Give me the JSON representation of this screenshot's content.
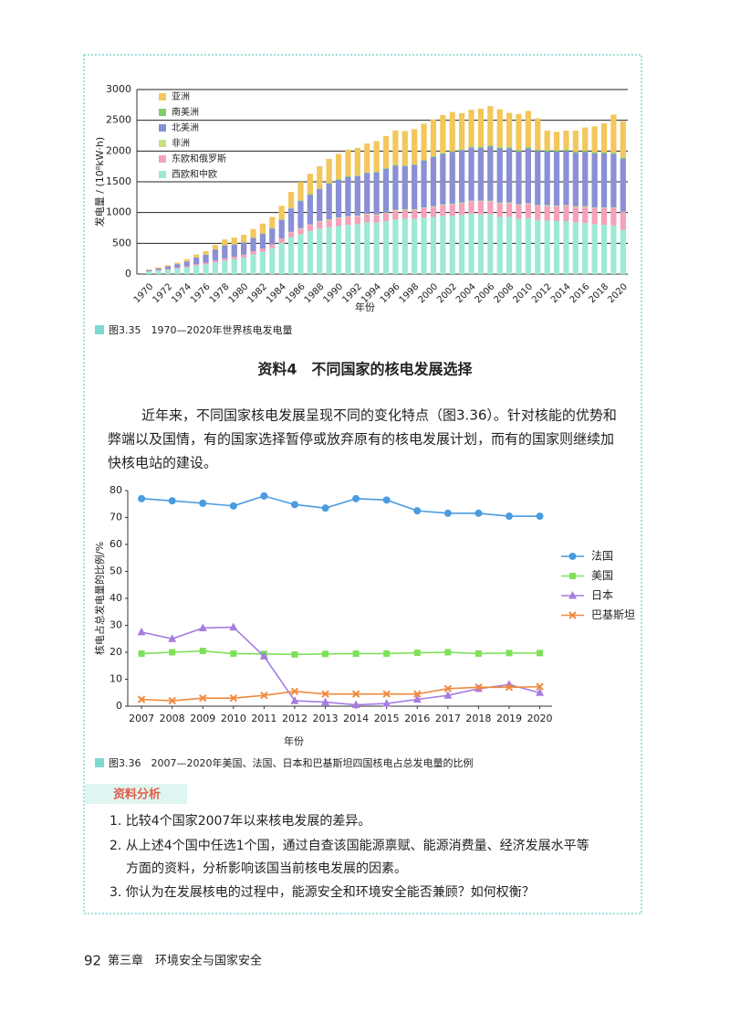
{
  "chart_data": [
    {
      "type": "bar",
      "stacked": true,
      "caption": "图3.35　1970—2020年世界核电发电量",
      "ylabel": "发电量 / (10⁸kW·h)",
      "xlabel": "年份",
      "categories": [
        "1970",
        null,
        "1972",
        null,
        "1974",
        null,
        "1976",
        null,
        "1978",
        null,
        "1980",
        null,
        "1982",
        null,
        "1984",
        null,
        "1986",
        null,
        "1988",
        null,
        "1990",
        null,
        "1992",
        null,
        "1994",
        null,
        "1996",
        null,
        "1998",
        null,
        "2000",
        null,
        "2002",
        null,
        "2004",
        null,
        "2006",
        null,
        "2008",
        null,
        "2010",
        null,
        "2012",
        null,
        "2014",
        null,
        "2016",
        null,
        "2018",
        null,
        "2020"
      ],
      "ylim": [
        0,
        3000
      ],
      "yticks": [
        0,
        500,
        1000,
        1500,
        2000,
        2500,
        3000
      ],
      "grid": true,
      "legend": "upper left",
      "series": [
        {
          "name": "西欧和中欧",
          "color": "#9de9d5",
          "values": [
            40,
            55,
            70,
            90,
            110,
            140,
            160,
            190,
            220,
            240,
            270,
            320,
            360,
            420,
            510,
            600,
            650,
            700,
            740,
            760,
            780,
            800,
            810,
            840,
            840,
            860,
            890,
            900,
            900,
            920,
            930,
            950,
            950,
            960,
            980,
            970,
            970,
            930,
            930,
            900,
            910,
            880,
            870,
            860,
            860,
            840,
            830,
            810,
            800,
            790,
            720
          ]
        },
        {
          "name": "东欧和俄罗斯",
          "color": "#f4a1b9",
          "values": [
            5,
            8,
            10,
            12,
            15,
            20,
            25,
            30,
            35,
            40,
            45,
            50,
            55,
            60,
            70,
            80,
            90,
            100,
            110,
            120,
            130,
            130,
            130,
            130,
            120,
            130,
            140,
            140,
            140,
            150,
            160,
            170,
            180,
            190,
            200,
            210,
            210,
            220,
            220,
            220,
            230,
            230,
            240,
            240,
            250,
            250,
            260,
            260,
            270,
            280,
            280
          ]
        },
        {
          "name": "非洲",
          "color": "#c6e08a",
          "values": [
            0,
            0,
            0,
            0,
            0,
            0,
            0,
            0,
            0,
            0,
            0,
            0,
            0,
            0,
            0,
            5,
            7,
            8,
            10,
            10,
            10,
            10,
            10,
            10,
            10,
            10,
            12,
            12,
            13,
            13,
            13,
            13,
            13,
            13,
            13,
            12,
            12,
            12,
            13,
            12,
            12,
            11,
            12,
            12,
            12,
            12,
            12,
            11,
            12,
            12,
            12
          ]
        },
        {
          "name": "北美洲",
          "color": "#8a8fd6",
          "values": [
            20,
            30,
            45,
            60,
            80,
            110,
            130,
            180,
            210,
            200,
            200,
            220,
            240,
            260,
            300,
            380,
            440,
            480,
            520,
            580,
            610,
            640,
            640,
            660,
            680,
            710,
            720,
            700,
            720,
            760,
            800,
            820,
            840,
            850,
            860,
            860,
            880,
            880,
            880,
            860,
            890,
            880,
            870,
            880,
            880,
            870,
            880,
            880,
            880,
            870,
            860
          ]
        },
        {
          "name": "南美洲",
          "color": "#7ccf6b",
          "values": [
            0,
            0,
            0,
            0,
            2,
            2,
            3,
            3,
            3,
            3,
            3,
            3,
            5,
            8,
            10,
            10,
            12,
            12,
            12,
            12,
            12,
            12,
            12,
            12,
            12,
            12,
            12,
            12,
            12,
            12,
            12,
            12,
            12,
            12,
            18,
            18,
            18,
            18,
            18,
            20,
            20,
            20,
            20,
            20,
            20,
            20,
            20,
            20,
            20,
            20,
            20
          ]
        },
        {
          "name": "亚洲",
          "color": "#f2c75c",
          "values": [
            10,
            15,
            20,
            25,
            35,
            45,
            55,
            70,
            95,
            110,
            120,
            140,
            160,
            180,
            220,
            260,
            300,
            330,
            360,
            390,
            410,
            430,
            450,
            470,
            500,
            520,
            560,
            560,
            570,
            590,
            600,
            620,
            640,
            590,
            600,
            620,
            640,
            620,
            560,
            590,
            590,
            510,
            320,
            300,
            310,
            340,
            380,
            420,
            470,
            620,
            590
          ]
        }
      ]
    },
    {
      "type": "line",
      "caption": "图3.36　2007—2020年美国、法国、日本和巴基斯坦四国核电占总发电量的比例",
      "ylabel": "核电占总发电量的比例/%",
      "xlabel": "年份",
      "x": [
        2007,
        2008,
        2009,
        2010,
        2011,
        2012,
        2013,
        2014,
        2015,
        2016,
        2017,
        2018,
        2019,
        2020
      ],
      "xlim": [
        2006.55,
        2020.4
      ],
      "xticks": [
        2007,
        2008,
        2009,
        2010,
        2011,
        2012,
        2013,
        2014,
        2015,
        2016,
        2017,
        2018,
        2019,
        2020
      ],
      "ylim": [
        0,
        80
      ],
      "yticks": [
        0,
        10,
        20,
        30,
        40,
        50,
        60,
        70,
        80
      ],
      "grid": false,
      "legend": "right",
      "series": [
        {
          "name": "法国",
          "color": "#4a9be0",
          "marker": "circle",
          "values": [
            77,
            76.2,
            75.3,
            74.3,
            78,
            74.8,
            73.5,
            77,
            76.5,
            72.5,
            71.6,
            71.6,
            70.5,
            70.5
          ]
        },
        {
          "name": "美国",
          "color": "#7ee05a",
          "marker": "square",
          "values": [
            19.5,
            20,
            20.5,
            19.5,
            19.4,
            19.2,
            19.4,
            19.5,
            19.5,
            19.8,
            20,
            19.5,
            19.7,
            19.7
          ]
        },
        {
          "name": "日本",
          "color": "#a57de0",
          "marker": "triangle",
          "values": [
            27.5,
            25,
            29,
            29.3,
            18.5,
            2,
            1.5,
            0.5,
            1,
            2.5,
            4,
            6.5,
            8,
            5
          ]
        },
        {
          "name": "巴基斯坦",
          "color": "#f08a3e",
          "marker": "x",
          "values": [
            2.5,
            2,
            3,
            3,
            4,
            5.5,
            4.5,
            4.5,
            4.5,
            4.5,
            6.5,
            7,
            7,
            7.2
          ]
        }
      ]
    }
  ],
  "section_title": "资料4　不同国家的核电发展选择",
  "paragraph": [
    "近年来，不同国家核电发展呈现不同的变化特点（图3.36）。针对核能的优势和",
    "弊端以及国情，有的国家选择暂停或放弃原有的核电发展计划，而有的国家则继续加",
    "快核电站的建设。"
  ],
  "analysis_title": "资料分析",
  "analysis_lines": [
    "1. 比较4个国家2007年以来核电发展的差异。",
    "2. 从上述4个国中任选1个国，通过自查该国能源禀赋、能源消费量、经济发展水平等",
    "方面的资料，分析影响该国当前核电发展的因素。",
    "3. 你认为在发展核电的过程中，能源安全和环境安全能否兼顾？如何权衡？"
  ],
  "footer": {
    "page": "92",
    "chapter": "第三章　环境安全与国家安全"
  }
}
